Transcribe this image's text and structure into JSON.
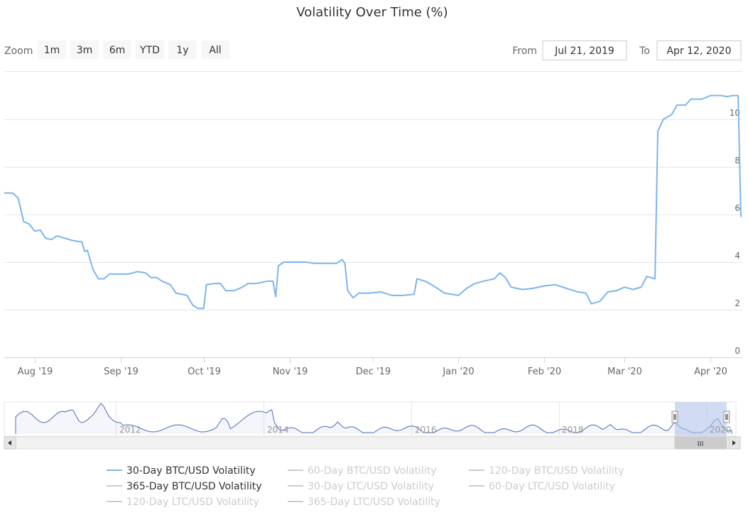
{
  "title": "Volatility Over Time (%)",
  "zoom": {
    "label": "Zoom",
    "buttons": [
      "1m",
      "3m",
      "6m",
      "YTD",
      "1y",
      "All"
    ]
  },
  "range": {
    "from_label": "From",
    "from_value": "Jul 21, 2019",
    "to_label": "To",
    "to_value": "Apr 12, 2020"
  },
  "colors": {
    "series": "#7cb5ec",
    "navigator_line": "#4b6cb8",
    "navigator_mask": "#b3c3ea",
    "legend_active": "#333333",
    "legend_inactive": "#cccccc"
  },
  "navigator": {
    "year_labels": [
      "2012",
      "2014",
      "2016",
      "2018",
      "2020"
    ],
    "scrollbar_grip": "III"
  },
  "legend": [
    {
      "label": "30-Day BTC/USD Volatility",
      "visible": true,
      "line": true
    },
    {
      "label": "60-Day BTC/USD Volatility",
      "visible": false,
      "line": true
    },
    {
      "label": "120-Day BTC/USD Volatility",
      "visible": false,
      "line": true
    },
    {
      "label": "365-Day BTC/USD Volatility",
      "visible": true,
      "line": false
    },
    {
      "label": "30-Day LTC/USD Volatility",
      "visible": false,
      "line": true
    },
    {
      "label": "60-Day LTC/USD Volatility",
      "visible": false,
      "line": true
    },
    {
      "label": "120-Day LTC/USD Volatility",
      "visible": false,
      "line": true
    },
    {
      "label": "365-Day LTC/USD Volatility",
      "visible": false,
      "line": true
    }
  ],
  "chart_data": {
    "type": "line",
    "title": "Volatility Over Time (%)",
    "x_ticks": [
      "Aug '19",
      "Sep '19",
      "Oct '19",
      "Nov '19",
      "Dec '19",
      "Jan '20",
      "Feb '20",
      "Mar '20",
      "Apr '20"
    ],
    "x_range": [
      "2019-07-21",
      "2020-04-12"
    ],
    "y_ticks": [
      "0",
      "2",
      "4",
      "6",
      "8",
      "10"
    ],
    "ylim": [
      0,
      12
    ],
    "grid": true,
    "legend_position": "bottom",
    "series": [
      {
        "name": "30-Day BTC/USD Volatility",
        "points": [
          [
            "2019-07-21",
            6.9
          ],
          [
            "2019-07-24",
            6.9
          ],
          [
            "2019-07-26",
            6.7
          ],
          [
            "2019-07-28",
            5.7
          ],
          [
            "2019-07-30",
            5.6
          ],
          [
            "2019-08-01",
            5.3
          ],
          [
            "2019-08-03",
            5.35
          ],
          [
            "2019-08-05",
            5.0
          ],
          [
            "2019-08-07",
            4.95
          ],
          [
            "2019-08-09",
            5.1
          ],
          [
            "2019-08-12",
            5.0
          ],
          [
            "2019-08-15",
            4.9
          ],
          [
            "2019-08-18",
            4.85
          ],
          [
            "2019-08-19",
            4.45
          ],
          [
            "2019-08-20",
            4.5
          ],
          [
            "2019-08-22",
            3.7
          ],
          [
            "2019-08-24",
            3.3
          ],
          [
            "2019-08-26",
            3.3
          ],
          [
            "2019-08-28",
            3.5
          ],
          [
            "2019-09-01",
            3.5
          ],
          [
            "2019-09-04",
            3.5
          ],
          [
            "2019-09-07",
            3.6
          ],
          [
            "2019-09-10",
            3.55
          ],
          [
            "2019-09-12",
            3.35
          ],
          [
            "2019-09-14",
            3.35
          ],
          [
            "2019-09-16",
            3.2
          ],
          [
            "2019-09-19",
            3.05
          ],
          [
            "2019-09-21",
            2.7
          ],
          [
            "2019-09-23",
            2.65
          ],
          [
            "2019-09-25",
            2.6
          ],
          [
            "2019-09-27",
            2.2
          ],
          [
            "2019-09-29",
            2.05
          ],
          [
            "2019-10-01",
            2.05
          ],
          [
            "2019-10-02",
            3.05
          ],
          [
            "2019-10-05",
            3.1
          ],
          [
            "2019-10-07",
            3.1
          ],
          [
            "2019-10-09",
            2.8
          ],
          [
            "2019-10-12",
            2.8
          ],
          [
            "2019-10-15",
            2.95
          ],
          [
            "2019-10-17",
            3.1
          ],
          [
            "2019-10-20",
            3.1
          ],
          [
            "2019-10-24",
            3.2
          ],
          [
            "2019-10-26",
            3.2
          ],
          [
            "2019-10-27",
            2.55
          ],
          [
            "2019-10-28",
            3.85
          ],
          [
            "2019-10-30",
            4.0
          ],
          [
            "2019-11-04",
            4.0
          ],
          [
            "2019-11-07",
            4.0
          ],
          [
            "2019-11-10",
            3.95
          ],
          [
            "2019-11-14",
            3.95
          ],
          [
            "2019-11-18",
            3.95
          ],
          [
            "2019-11-20",
            4.1
          ],
          [
            "2019-11-21",
            3.95
          ],
          [
            "2019-11-22",
            2.8
          ],
          [
            "2019-11-24",
            2.5
          ],
          [
            "2019-11-26",
            2.7
          ],
          [
            "2019-11-30",
            2.7
          ],
          [
            "2019-12-04",
            2.75
          ],
          [
            "2019-12-08",
            2.6
          ],
          [
            "2019-12-12",
            2.6
          ],
          [
            "2019-12-16",
            2.65
          ],
          [
            "2019-12-17",
            3.3
          ],
          [
            "2019-12-20",
            3.2
          ],
          [
            "2019-12-23",
            3.0
          ],
          [
            "2019-12-27",
            2.7
          ],
          [
            "2020-01-01",
            2.6
          ],
          [
            "2020-01-04",
            2.9
          ],
          [
            "2020-01-07",
            3.1
          ],
          [
            "2020-01-10",
            3.2
          ],
          [
            "2020-01-14",
            3.3
          ],
          [
            "2020-01-16",
            3.55
          ],
          [
            "2020-01-18",
            3.35
          ],
          [
            "2020-01-20",
            2.95
          ],
          [
            "2020-01-24",
            2.85
          ],
          [
            "2020-01-28",
            2.9
          ],
          [
            "2020-02-01",
            3.0
          ],
          [
            "2020-02-05",
            3.05
          ],
          [
            "2020-02-09",
            2.9
          ],
          [
            "2020-02-13",
            2.75
          ],
          [
            "2020-02-16",
            2.7
          ],
          [
            "2020-02-18",
            2.25
          ],
          [
            "2020-02-21",
            2.35
          ],
          [
            "2020-02-24",
            2.75
          ],
          [
            "2020-02-27",
            2.8
          ],
          [
            "2020-03-01",
            2.95
          ],
          [
            "2020-03-04",
            2.85
          ],
          [
            "2020-03-07",
            2.95
          ],
          [
            "2020-03-09",
            3.4
          ],
          [
            "2020-03-12",
            3.3
          ],
          [
            "2020-03-13",
            9.5
          ],
          [
            "2020-03-15",
            10.0
          ],
          [
            "2020-03-18",
            10.2
          ],
          [
            "2020-03-20",
            10.6
          ],
          [
            "2020-03-23",
            10.6
          ],
          [
            "2020-03-25",
            10.85
          ],
          [
            "2020-03-29",
            10.85
          ],
          [
            "2020-04-01",
            11.0
          ],
          [
            "2020-04-05",
            11.0
          ],
          [
            "2020-04-07",
            10.95
          ],
          [
            "2020-04-09",
            11.0
          ],
          [
            "2020-04-11",
            11.0
          ],
          [
            "2020-04-12",
            5.9
          ]
        ]
      }
    ]
  }
}
